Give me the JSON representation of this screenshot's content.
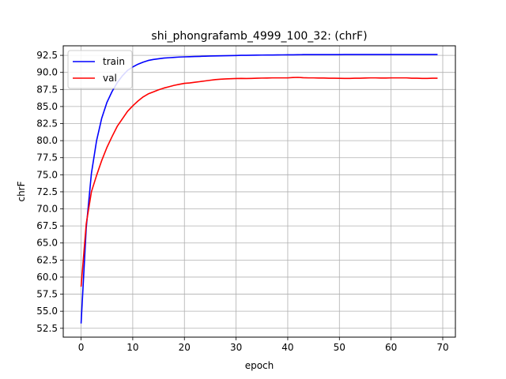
{
  "chart_data": {
    "type": "line",
    "title": "shi_phongrafamb_4999_100_32: (chrF)",
    "xlabel": "epoch",
    "ylabel": "chrF",
    "xlim": [
      -3.45,
      72.45
    ],
    "ylim": [
      51.2,
      93.9
    ],
    "xticks": [
      0,
      10,
      20,
      30,
      40,
      50,
      60,
      70
    ],
    "yticks": [
      52.5,
      55.0,
      57.5,
      60.0,
      62.5,
      65.0,
      67.5,
      70.0,
      72.5,
      75.0,
      77.5,
      80.0,
      82.5,
      85.0,
      87.5,
      90.0,
      92.5
    ],
    "grid": true,
    "legend": "top-left",
    "series": [
      {
        "name": "train",
        "color": "#0000ff",
        "x": [
          0,
          1,
          2,
          3,
          4,
          5,
          6,
          7,
          8,
          9,
          10,
          11,
          12,
          13,
          14,
          15,
          16,
          17,
          18,
          19,
          20,
          21,
          22,
          23,
          24,
          25,
          26,
          27,
          28,
          29,
          30,
          31,
          32,
          33,
          34,
          35,
          36,
          37,
          38,
          39,
          40,
          41,
          42,
          43,
          44,
          45,
          46,
          47,
          48,
          49,
          50,
          51,
          52,
          53,
          54,
          55,
          56,
          57,
          58,
          59,
          60,
          61,
          62,
          63,
          64,
          65,
          66,
          67,
          68,
          69
        ],
        "y": [
          53.2,
          67.2,
          75.2,
          80.0,
          83.3,
          85.6,
          87.2,
          88.5,
          89.5,
          90.3,
          90.8,
          91.2,
          91.5,
          91.75,
          91.9,
          92.0,
          92.1,
          92.15,
          92.2,
          92.25,
          92.28,
          92.3,
          92.33,
          92.35,
          92.38,
          92.4,
          92.42,
          92.43,
          92.45,
          92.46,
          92.48,
          92.5,
          92.5,
          92.52,
          92.53,
          92.54,
          92.55,
          92.55,
          92.56,
          92.57,
          92.58,
          92.58,
          92.59,
          92.6,
          92.6,
          92.6,
          92.6,
          92.6,
          92.61,
          92.61,
          92.61,
          92.62,
          92.62,
          92.62,
          92.62,
          92.62,
          92.62,
          92.62,
          92.62,
          92.62,
          92.62,
          92.62,
          92.62,
          92.62,
          92.62,
          92.62,
          92.62,
          92.62,
          92.62,
          92.62
        ]
      },
      {
        "name": "val",
        "color": "#ff0000",
        "x": [
          0,
          1,
          2,
          3,
          4,
          5,
          6,
          7,
          8,
          9,
          10,
          11,
          12,
          13,
          14,
          15,
          16,
          17,
          18,
          19,
          20,
          21,
          22,
          23,
          24,
          25,
          26,
          27,
          28,
          29,
          30,
          31,
          32,
          33,
          34,
          35,
          36,
          37,
          38,
          39,
          40,
          41,
          42,
          43,
          44,
          45,
          46,
          47,
          48,
          49,
          50,
          51,
          52,
          53,
          54,
          55,
          56,
          57,
          58,
          59,
          60,
          61,
          62,
          63,
          64,
          65,
          66,
          67,
          68,
          69
        ],
        "y": [
          58.6,
          67.8,
          72.5,
          74.9,
          77.1,
          79.0,
          80.6,
          82.1,
          83.2,
          84.3,
          85.1,
          85.8,
          86.4,
          86.85,
          87.15,
          87.45,
          87.7,
          87.9,
          88.1,
          88.25,
          88.4,
          88.45,
          88.55,
          88.65,
          88.75,
          88.85,
          88.95,
          89.0,
          89.05,
          89.08,
          89.1,
          89.12,
          89.1,
          89.12,
          89.15,
          89.17,
          89.18,
          89.2,
          89.2,
          89.2,
          89.2,
          89.25,
          89.27,
          89.22,
          89.2,
          89.2,
          89.18,
          89.18,
          89.15,
          89.15,
          89.13,
          89.12,
          89.12,
          89.15,
          89.15,
          89.18,
          89.2,
          89.2,
          89.18,
          89.18,
          89.2,
          89.2,
          89.2,
          89.2,
          89.15,
          89.15,
          89.12,
          89.12,
          89.15,
          89.15
        ]
      }
    ]
  }
}
